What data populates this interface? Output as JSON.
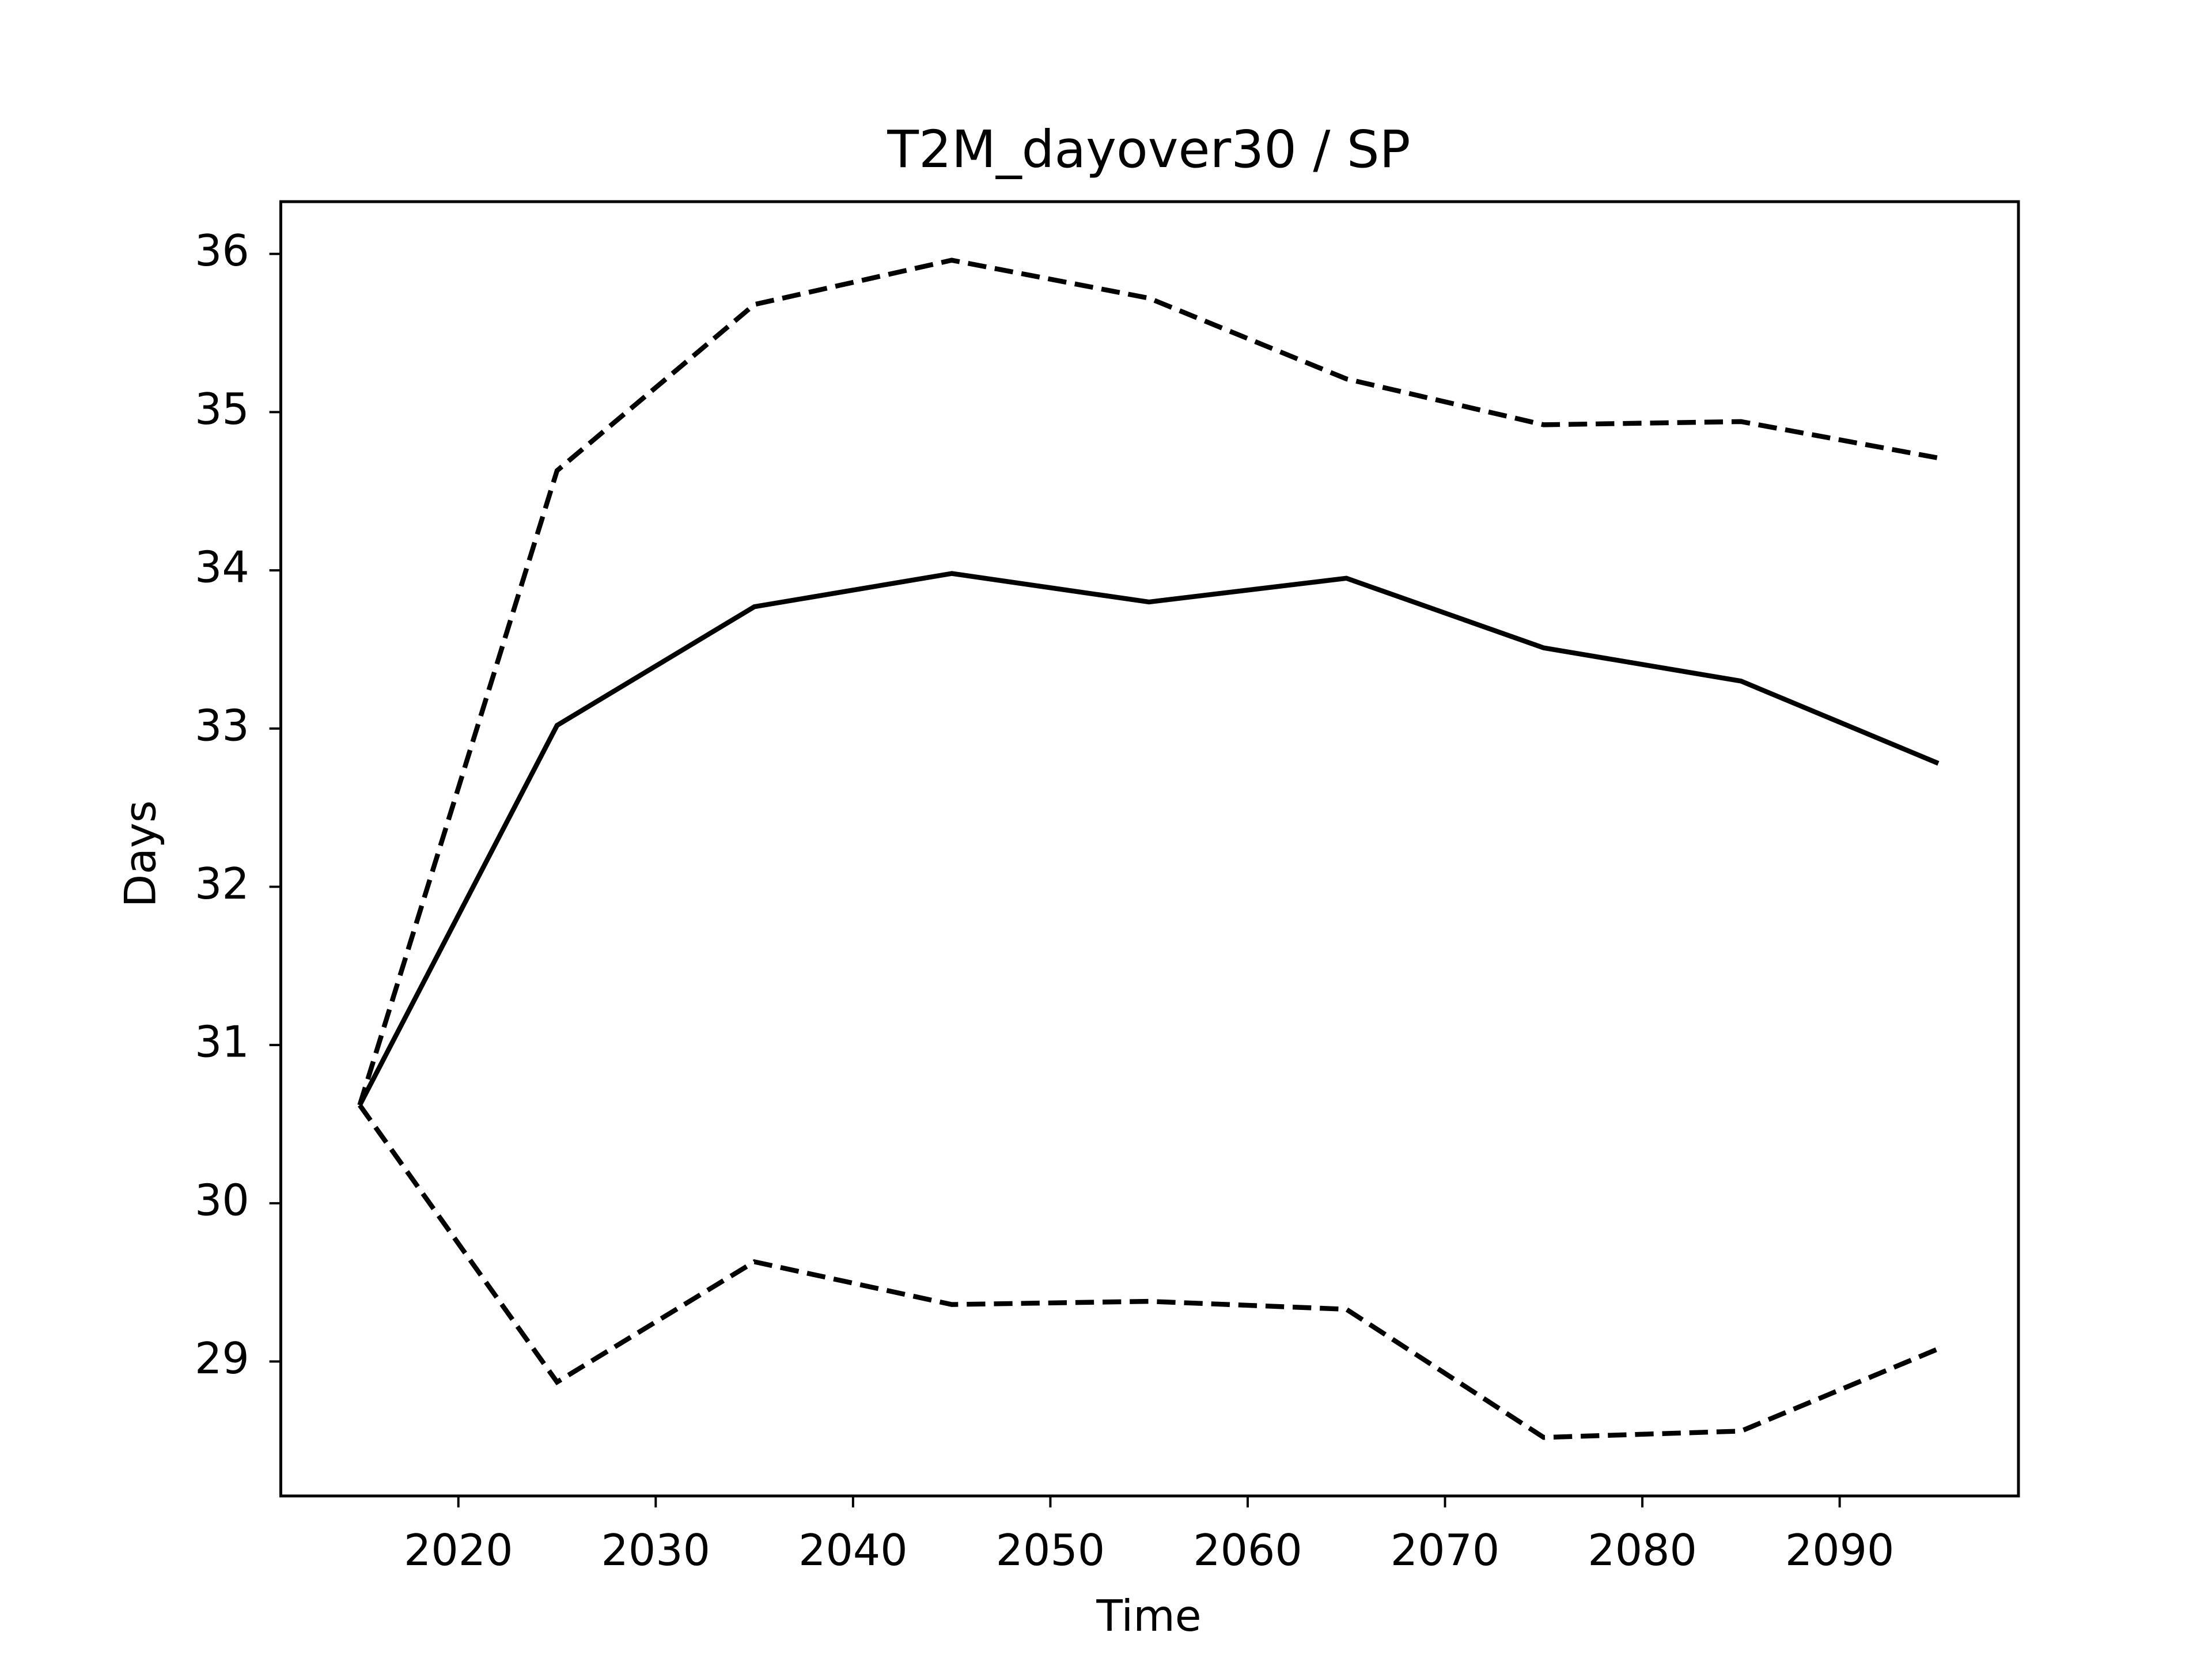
{
  "chart_data": {
    "type": "line",
    "title": "T2M_dayover30 / SP",
    "x_label": "Time",
    "y_label": "Days",
    "x": [
      2015,
      2025,
      2035,
      2045,
      2055,
      2065,
      2075,
      2085,
      2095
    ],
    "series": [
      {
        "color": "#000000",
        "dash": false,
        "values": [
          30.62,
          33.02,
          33.77,
          33.98,
          33.8,
          33.95,
          33.51,
          33.3,
          32.78
        ]
      },
      {
        "color": "#000000",
        "dash": true,
        "values": [
          30.62,
          34.63,
          35.68,
          35.96,
          35.72,
          35.21,
          34.92,
          34.94,
          34.71
        ]
      },
      {
        "color": "#000000",
        "dash": true,
        "values": [
          30.62,
          28.87,
          29.63,
          29.36,
          29.38,
          29.33,
          28.52,
          28.56,
          29.08
        ]
      }
    ],
    "xlim": [
      2011.0,
      2099.06
    ],
    "ylim": [
      28.15,
      36.33
    ],
    "xticks": [
      2020,
      2030,
      2040,
      2050,
      2060,
      2070,
      2080,
      2090
    ],
    "yticks": [
      29,
      30,
      31,
      32,
      33,
      34,
      35,
      36
    ],
    "grid": false
  }
}
